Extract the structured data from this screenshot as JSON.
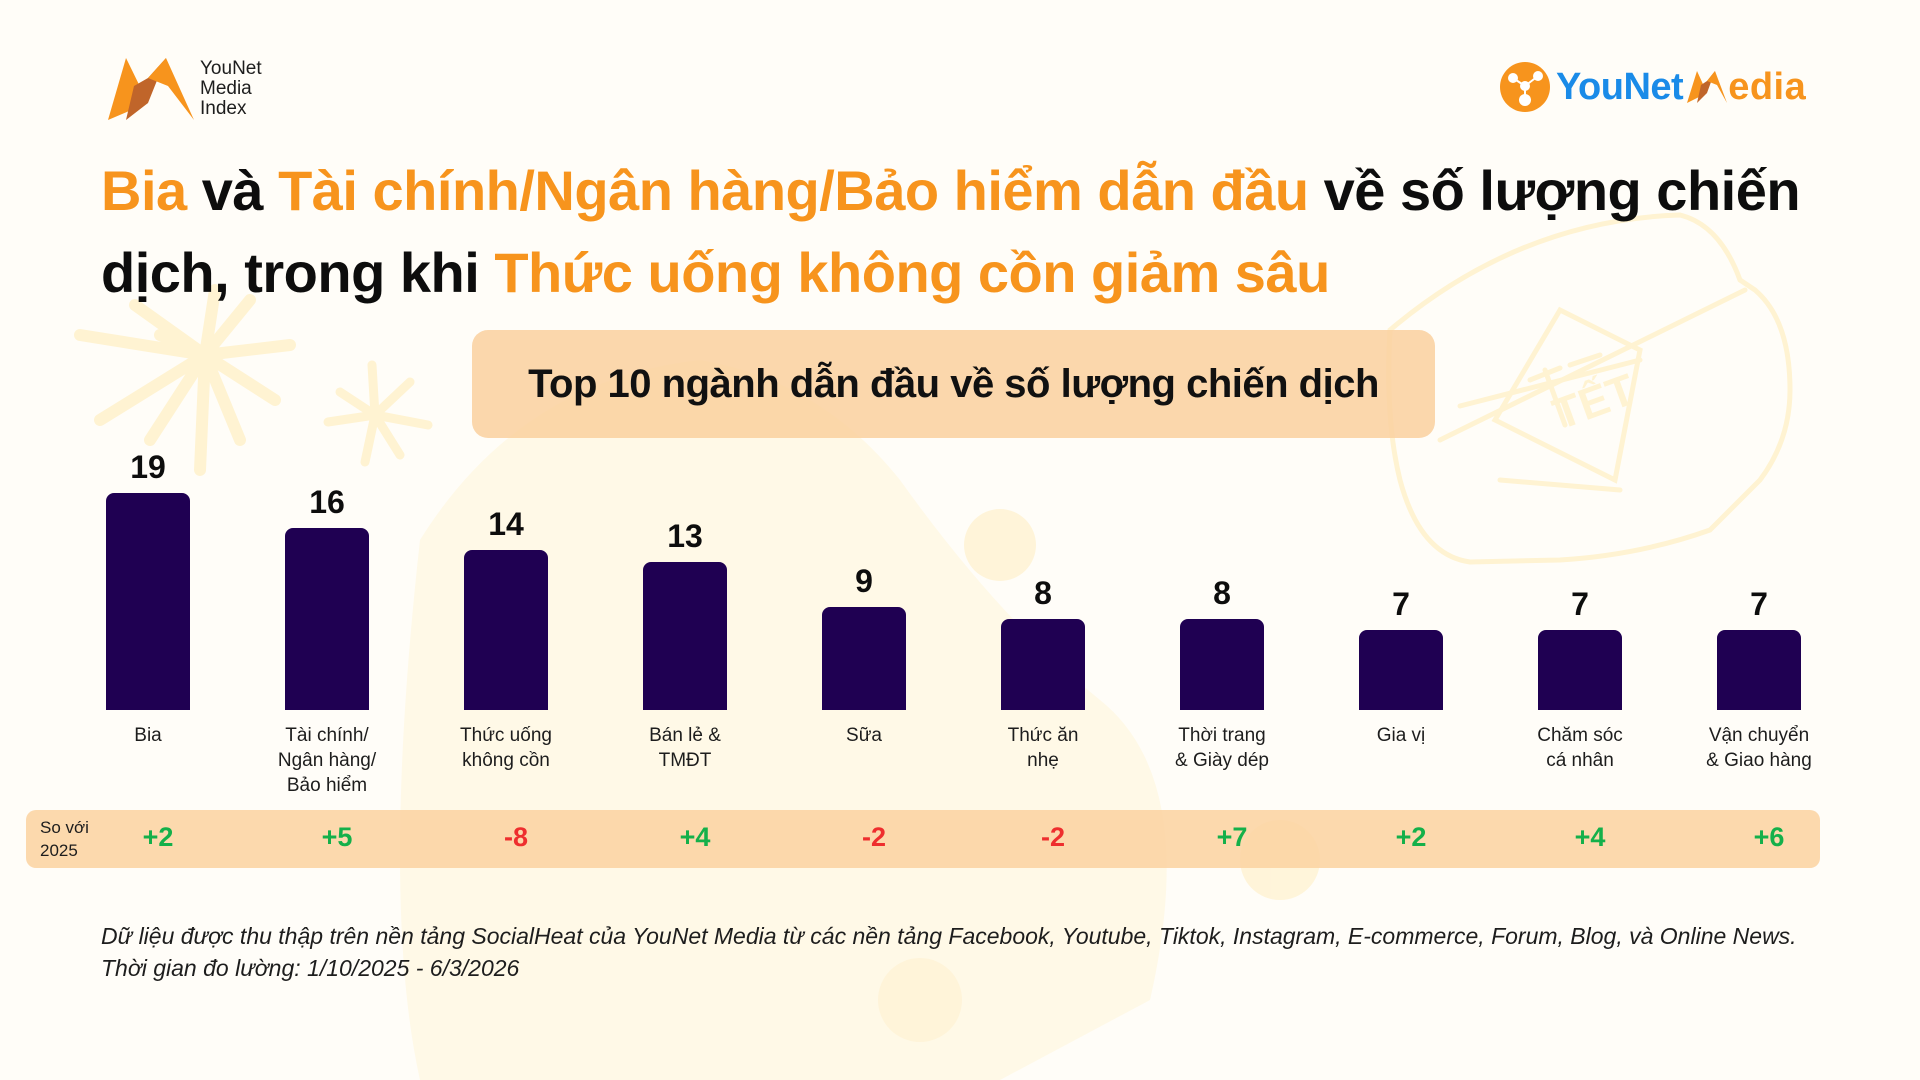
{
  "logos": {
    "left": {
      "lines": [
        "YouNet",
        "Media",
        "Index"
      ]
    },
    "right": {
      "part1": "YouNet",
      "part2": "edia"
    }
  },
  "title": {
    "segments": [
      {
        "text": "Bia",
        "highlight": true
      },
      {
        "text": " và ",
        "highlight": false
      },
      {
        "text": "Tài chính/Ngân hàng/Bảo hiểm dẫn đầu",
        "highlight": true
      },
      {
        "text": " về số lượng chiến dịch, trong khi ",
        "highlight": false
      },
      {
        "text": "Thức uống không cồn giảm sâu",
        "highlight": true
      }
    ]
  },
  "colors": {
    "accent": "#f7941d",
    "bar": "#1f0052",
    "positive": "#14b04a",
    "negative": "#ee2e2e",
    "pill": "#fbd2a0",
    "background": "#fffdf8",
    "logo_blue": "#1a8be8"
  },
  "comparison": {
    "label_line1": "So với",
    "label_line2": "2025"
  },
  "footnote": {
    "line1": "Dữ liệu được thu thập trên nền tảng SocialHeat của YouNet Media từ các nền tảng Facebook, Youtube, Tiktok, Instagram, E-commerce, Forum, Blog, và Online News.",
    "line2": "Thời gian đo lường: 1/10/2025 - 6/3/2026"
  },
  "chart_data": {
    "type": "bar",
    "title": "Top 10 ngành dẫn đầu về số lượng chiến dịch",
    "xlabel": "",
    "ylabel": "",
    "grid": false,
    "legend": null,
    "categories": [
      "Bia",
      "Tài chính/ Ngân hàng/ Bảo hiểm",
      "Thức uống không cồn",
      "Bán lẻ & TMĐT",
      "Sữa",
      "Thức ăn nhẹ",
      "Thời trang & Giày dép",
      "Gia vị",
      "Chăm sóc cá nhân",
      "Vận chuyển & Giao hàng"
    ],
    "category_lines": [
      [
        "Bia"
      ],
      [
        "Tài chính/",
        "Ngân hàng/",
        "Bảo hiểm"
      ],
      [
        "Thức uống",
        "không cồn"
      ],
      [
        "Bán lẻ &",
        "TMĐT"
      ],
      [
        "Sữa"
      ],
      [
        "Thức ăn",
        "nhẹ"
      ],
      [
        "Thời trang",
        "& Giày dép"
      ],
      [
        "Gia vị"
      ],
      [
        "Chăm sóc",
        "cá nhân"
      ],
      [
        "Vận chuyển",
        "& Giao hàng"
      ]
    ],
    "values": [
      19,
      16,
      14,
      13,
      9,
      8,
      8,
      7,
      7,
      7
    ],
    "change_vs_2025": [
      "+2",
      "+5",
      "-8",
      "+4",
      "-2",
      "-2",
      "+7",
      "+2",
      "+4",
      "+6"
    ],
    "ylim": [
      0,
      20
    ]
  }
}
